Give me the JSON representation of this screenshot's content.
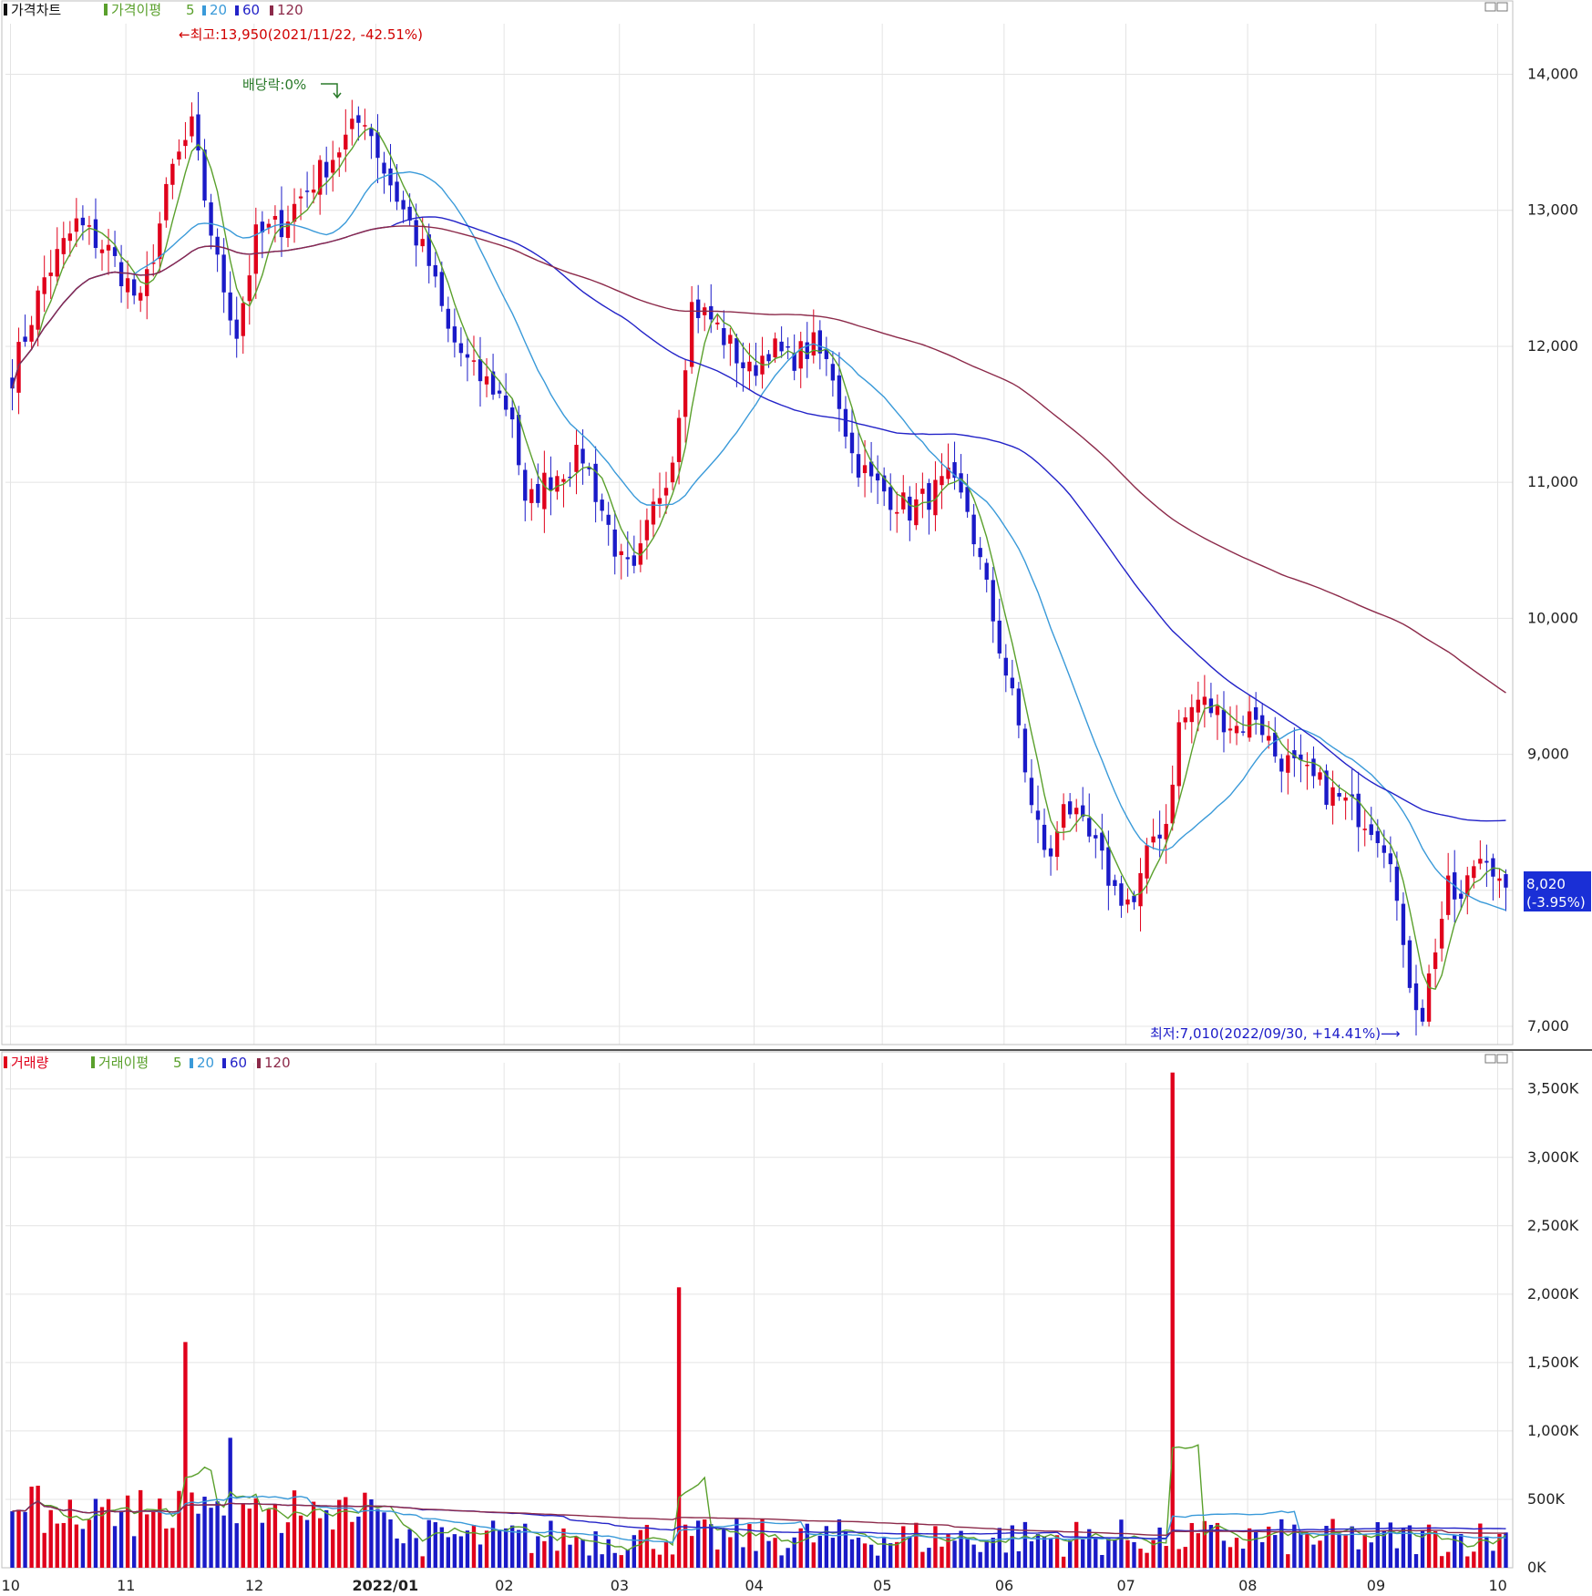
{
  "price_panel": {
    "legend": {
      "price_chart": "가격차트",
      "ma_label": "가격이평",
      "periods": [
        "5",
        "20",
        "60",
        "120"
      ]
    },
    "high_annotation": "←최고:13,950(2021/11/22, -42.51%)",
    "dividend_annotation": "배당락:0%",
    "low_annotation": "최저:7,010(2022/09/30, +14.41%)⟶",
    "current_price": "8,020",
    "current_change": "(-3.95%)",
    "y_ticks": [
      "7,000",
      "9,000",
      "10,000",
      "11,000",
      "12,000",
      "13,000",
      "14,000"
    ]
  },
  "volume_panel": {
    "legend": {
      "volume": "거래량",
      "ma_label": "거래이평",
      "periods": [
        "5",
        "20",
        "60",
        "120"
      ]
    },
    "y_ticks": [
      "0K",
      "500K",
      "1,000K",
      "1,500K",
      "2,000K",
      "2,500K",
      "3,000K",
      "3,500K"
    ]
  },
  "x_axis": {
    "labels": [
      "10",
      "11",
      "12",
      "2022/01",
      "02",
      "03",
      "04",
      "05",
      "06",
      "07",
      "08",
      "09",
      "10"
    ]
  },
  "colors": {
    "up": "#e0001b",
    "down": "#1a1ac8",
    "ma5": "#5aa02c",
    "ma20": "#3a9ad9",
    "ma60": "#2323c8",
    "ma120": "#8c2a4a",
    "grid": "#e4e4e4",
    "badge": "#1a2fd6"
  },
  "chart_data": [
    {
      "type": "candlestick",
      "title": "가격차트",
      "ylim": [
        7000,
        14000
      ],
      "x_labels": [
        "10",
        "11",
        "12",
        "2022/01",
        "02",
        "03",
        "04",
        "05",
        "06",
        "07",
        "08",
        "09",
        "10"
      ],
      "high": {
        "value": 13950,
        "date": "2021/11/22"
      },
      "low": {
        "value": 7010,
        "date": "2022/09/30"
      },
      "last": {
        "value": 8020,
        "change_pct": -3.95
      },
      "close_path": [
        [
          0,
          11800
        ],
        [
          5,
          12500
        ],
        [
          10,
          12900
        ],
        [
          15,
          12700
        ],
        [
          20,
          12300
        ],
        [
          25,
          13300
        ],
        [
          28,
          13600
        ],
        [
          32,
          12600
        ],
        [
          35,
          12100
        ],
        [
          38,
          12800
        ],
        [
          42,
          12900
        ],
        [
          45,
          13100
        ],
        [
          50,
          13400
        ],
        [
          55,
          13700
        ],
        [
          58,
          13300
        ],
        [
          62,
          12900
        ],
        [
          65,
          12600
        ],
        [
          68,
          12100
        ],
        [
          72,
          11800
        ],
        [
          75,
          11700
        ],
        [
          78,
          11500
        ],
        [
          80,
          10800
        ],
        [
          83,
          11000
        ],
        [
          86,
          11100
        ],
        [
          89,
          11200
        ],
        [
          92,
          10800
        ],
        [
          95,
          10400
        ],
        [
          97,
          10300
        ],
        [
          100,
          10800
        ],
        [
          103,
          11200
        ],
        [
          106,
          12300
        ],
        [
          109,
          12200
        ],
        [
          112,
          12000
        ],
        [
          115,
          11800
        ],
        [
          118,
          12000
        ],
        [
          121,
          11900
        ],
        [
          125,
          12000
        ],
        [
          128,
          11800
        ],
        [
          131,
          11200
        ],
        [
          134,
          11000
        ],
        [
          137,
          10900
        ],
        [
          140,
          10800
        ],
        [
          143,
          10900
        ],
        [
          146,
          11000
        ],
        [
          149,
          10800
        ],
        [
          152,
          10200
        ],
        [
          155,
          9600
        ],
        [
          157,
          9200
        ],
        [
          159,
          8600
        ],
        [
          162,
          8200
        ],
        [
          164,
          8700
        ],
        [
          166,
          8500
        ],
        [
          169,
          8300
        ],
        [
          172,
          8000
        ],
        [
          175,
          7900
        ],
        [
          178,
          8400
        ],
        [
          180,
          8500
        ],
        [
          182,
          9200
        ],
        [
          185,
          9400
        ],
        [
          188,
          9300
        ],
        [
          191,
          9200
        ],
        [
          194,
          9300
        ],
        [
          197,
          9000
        ],
        [
          200,
          8900
        ],
        [
          203,
          8800
        ],
        [
          206,
          8700
        ],
        [
          209,
          8600
        ],
        [
          212,
          8500
        ],
        [
          215,
          8300
        ],
        [
          217,
          7500
        ],
        [
          219,
          7200
        ],
        [
          220,
          7100
        ],
        [
          222,
          7600
        ],
        [
          224,
          8000
        ],
        [
          226,
          7900
        ],
        [
          228,
          8200
        ],
        [
          230,
          8300
        ],
        [
          232,
          8020
        ]
      ],
      "ma_periods": [
        5,
        20,
        60,
        120
      ]
    },
    {
      "type": "bar",
      "title": "거래량",
      "ylim": [
        0,
        3600000
      ],
      "x_labels": [
        "10",
        "11",
        "12",
        "2022/01",
        "02",
        "03",
        "04",
        "05",
        "06",
        "07",
        "08",
        "09",
        "10"
      ],
      "spikes": [
        {
          "index": 27,
          "value": 1650000
        },
        {
          "index": 34,
          "value": 950000
        },
        {
          "index": 104,
          "value": 2050000
        },
        {
          "index": 181,
          "value": 3620000
        }
      ],
      "typical_range": [
        50000,
        500000
      ],
      "ma_periods": [
        5,
        20,
        60,
        120
      ]
    }
  ]
}
